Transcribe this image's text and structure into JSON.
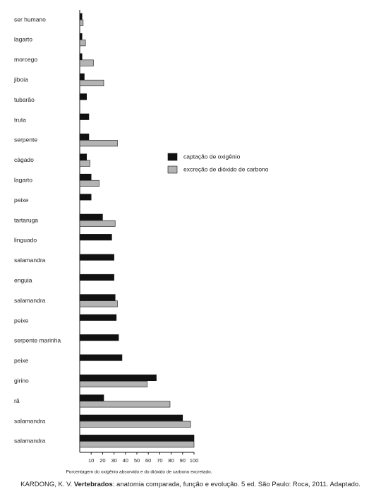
{
  "chart_data": {
    "type": "hbar",
    "categories": [
      "ser humano",
      "lagarto",
      "morcego",
      "jiboia",
      "tubarão",
      "truta",
      "serpente",
      "cágado",
      "lagarto",
      "peixe",
      "tartaruga",
      "linguado",
      "salamandra",
      "enguia",
      "salamandra",
      "peixe",
      "serpente marinha",
      "peixe",
      "girino",
      "rã",
      "salamandra",
      "salamandra"
    ],
    "series": [
      {
        "name": "captação de oxigênio",
        "color": "#111111",
        "values": [
          2,
          2,
          2,
          4,
          6,
          8,
          8,
          6,
          10,
          10,
          20,
          28,
          30,
          30,
          31,
          32,
          34,
          37,
          67,
          21,
          90,
          100
        ]
      },
      {
        "name": "excreção de dióxido de carbono",
        "color": "#b3b3b3",
        "values": [
          3,
          5,
          12,
          21,
          null,
          null,
          33,
          9,
          17,
          null,
          31,
          null,
          null,
          null,
          33,
          null,
          null,
          null,
          59,
          79,
          97,
          100
        ]
      }
    ],
    "xlim": [
      0,
      100
    ],
    "xticks": [
      10,
      20,
      30,
      40,
      50,
      60,
      70,
      80,
      90,
      100
    ],
    "x_label": "Porcentagem do oxigênio absorvido e do dióxido de carbono excretado.",
    "source": [
      "KARDONG, K. V.",
      "Vertebrados",
      ": anatomia comparada, função e evolução. 5 ed. São Paulo: Roca, 2011. Adaptado."
    ]
  }
}
